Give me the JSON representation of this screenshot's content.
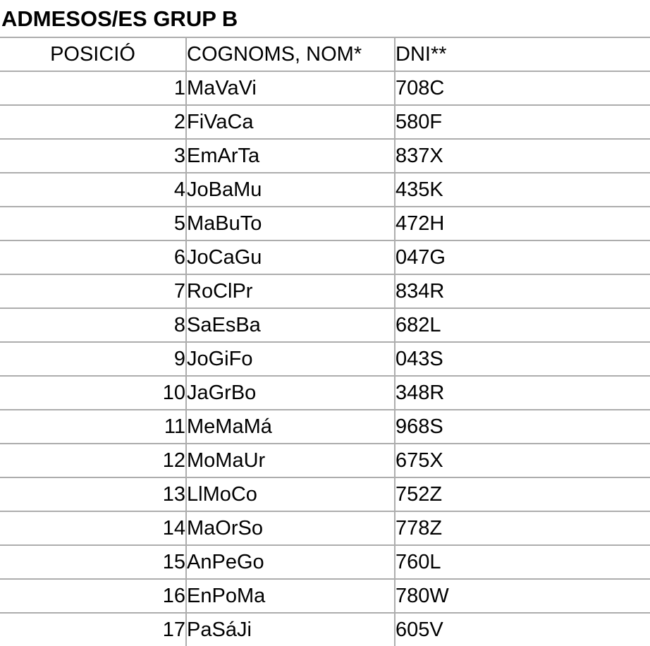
{
  "page": {
    "title": "ADMESOS/ES GRUP B"
  },
  "colors": {
    "background": "#ffffff",
    "text": "#000000",
    "table_border": "#adadad"
  },
  "table": {
    "columns": [
      {
        "key": "posicio",
        "label": "POSICIÓ"
      },
      {
        "key": "cognoms",
        "label": "COGNOMS, NOM*"
      },
      {
        "key": "dni",
        "label": "DNI**"
      }
    ],
    "rows": [
      {
        "posicio": "1",
        "cognoms": "MaVaVi",
        "dni": "708C"
      },
      {
        "posicio": "2",
        "cognoms": "FiVaCa",
        "dni": "580F"
      },
      {
        "posicio": "3",
        "cognoms": "EmArTa",
        "dni": "837X"
      },
      {
        "posicio": "4",
        "cognoms": "JoBaMu",
        "dni": "435K"
      },
      {
        "posicio": "5",
        "cognoms": "MaBuTo",
        "dni": "472H"
      },
      {
        "posicio": "6",
        "cognoms": "JoCaGu",
        "dni": "047G"
      },
      {
        "posicio": "7",
        "cognoms": "RoClPr",
        "dni": "834R"
      },
      {
        "posicio": "8",
        "cognoms": "SaEsBa",
        "dni": "682L"
      },
      {
        "posicio": "9",
        "cognoms": "JoGiFo",
        "dni": "043S"
      },
      {
        "posicio": "10",
        "cognoms": "JaGrBo",
        "dni": "348R"
      },
      {
        "posicio": "11",
        "cognoms": "MeMaMá",
        "dni": "968S"
      },
      {
        "posicio": "12",
        "cognoms": "MoMaUr",
        "dni": "675X"
      },
      {
        "posicio": "13",
        "cognoms": "LlMoCo",
        "dni": "752Z"
      },
      {
        "posicio": "14",
        "cognoms": "MaOrSo",
        "dni": "778Z"
      },
      {
        "posicio": "15",
        "cognoms": "AnPeGo",
        "dni": "760L"
      },
      {
        "posicio": "16",
        "cognoms": "EnPoMa",
        "dni": "780W"
      },
      {
        "posicio": "17",
        "cognoms": "PaSáJi",
        "dni": "605V"
      }
    ]
  }
}
